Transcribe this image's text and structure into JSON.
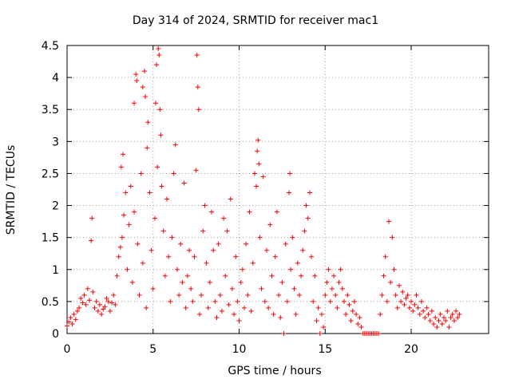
{
  "chart_data": {
    "type": "scatter",
    "title": "Day 314 of 2024, SRMTID for receiver mac1",
    "xlabel": "GPS time / hours",
    "ylabel": "SRMTID / TECUs",
    "xlim": [
      0,
      24.5
    ],
    "ylim": [
      0,
      4.5
    ],
    "xticks": [
      "0",
      "5",
      "10",
      "15",
      "20"
    ],
    "yticks": [
      "0",
      "0.5",
      "1",
      "1.5",
      "2",
      "2.5",
      "3",
      "3.5",
      "4",
      "4.5"
    ],
    "grid": true,
    "marker": "+",
    "color": "#ff0000",
    "series": [
      {
        "name": "SRMTID",
        "points": [
          [
            0.0,
            0.12
          ],
          [
            0.1,
            0.18
          ],
          [
            0.2,
            0.25
          ],
          [
            0.3,
            0.15
          ],
          [
            0.4,
            0.3
          ],
          [
            0.5,
            0.22
          ],
          [
            0.6,
            0.35
          ],
          [
            0.7,
            0.4
          ],
          [
            0.8,
            0.55
          ],
          [
            0.9,
            0.48
          ],
          [
            1.0,
            0.6
          ],
          [
            1.1,
            0.45
          ],
          [
            1.2,
            0.7
          ],
          [
            1.3,
            0.52
          ],
          [
            1.4,
            1.45
          ],
          [
            1.45,
            1.8
          ],
          [
            1.5,
            0.65
          ],
          [
            1.6,
            0.4
          ],
          [
            1.7,
            0.5
          ],
          [
            1.8,
            0.35
          ],
          [
            1.9,
            0.45
          ],
          [
            2.0,
            0.3
          ],
          [
            2.1,
            0.38
          ],
          [
            2.2,
            0.42
          ],
          [
            2.3,
            0.55
          ],
          [
            2.4,
            0.5
          ],
          [
            2.5,
            0.35
          ],
          [
            2.6,
            0.48
          ],
          [
            2.7,
            0.6
          ],
          [
            2.8,
            0.45
          ],
          [
            2.9,
            0.9
          ],
          [
            3.0,
            1.2
          ],
          [
            3.1,
            1.35
          ],
          [
            3.15,
            2.6
          ],
          [
            3.2,
            1.5
          ],
          [
            3.25,
            2.8
          ],
          [
            3.3,
            1.85
          ],
          [
            3.4,
            2.2
          ],
          [
            3.5,
            1.0
          ],
          [
            3.6,
            1.7
          ],
          [
            3.7,
            2.3
          ],
          [
            3.8,
            0.8
          ],
          [
            3.9,
            1.9
          ],
          [
            3.9,
            3.6
          ],
          [
            4.0,
            4.05
          ],
          [
            4.05,
            3.95
          ],
          [
            4.1,
            1.4
          ],
          [
            4.2,
            0.6
          ],
          [
            4.3,
            2.5
          ],
          [
            4.4,
            1.1
          ],
          [
            4.4,
            3.85
          ],
          [
            4.5,
            4.1
          ],
          [
            4.55,
            3.7
          ],
          [
            4.6,
            0.4
          ],
          [
            4.65,
            2.9
          ],
          [
            4.7,
            3.3
          ],
          [
            4.8,
            2.2
          ],
          [
            4.9,
            1.3
          ],
          [
            5.0,
            0.7
          ],
          [
            5.1,
            1.8
          ],
          [
            5.15,
            3.6
          ],
          [
            5.2,
            4.2
          ],
          [
            5.25,
            2.6
          ],
          [
            5.3,
            4.45
          ],
          [
            5.35,
            4.35
          ],
          [
            5.4,
            3.5
          ],
          [
            5.45,
            3.1
          ],
          [
            5.5,
            2.3
          ],
          [
            5.6,
            1.6
          ],
          [
            5.7,
            0.9
          ],
          [
            5.8,
            2.1
          ],
          [
            5.9,
            1.2
          ],
          [
            6.0,
            0.5
          ],
          [
            6.1,
            1.5
          ],
          [
            6.2,
            2.5
          ],
          [
            6.3,
            2.95
          ],
          [
            6.4,
            1.0
          ],
          [
            6.5,
            0.6
          ],
          [
            6.6,
            1.4
          ],
          [
            6.7,
            0.8
          ],
          [
            6.8,
            2.35
          ],
          [
            6.9,
            0.4
          ],
          [
            7.0,
            0.9
          ],
          [
            7.1,
            1.3
          ],
          [
            7.2,
            0.7
          ],
          [
            7.3,
            0.5
          ],
          [
            7.4,
            1.2
          ],
          [
            7.5,
            2.55
          ],
          [
            7.55,
            4.35
          ],
          [
            7.6,
            3.85
          ],
          [
            7.65,
            3.5
          ],
          [
            7.7,
            0.3
          ],
          [
            7.8,
            0.6
          ],
          [
            7.9,
            1.6
          ],
          [
            8.0,
            2.0
          ],
          [
            8.1,
            1.1
          ],
          [
            8.2,
            0.4
          ],
          [
            8.3,
            0.8
          ],
          [
            8.4,
            1.9
          ],
          [
            8.5,
            1.3
          ],
          [
            8.6,
            0.5
          ],
          [
            8.7,
            0.25
          ],
          [
            8.8,
            1.4
          ],
          [
            8.9,
            0.6
          ],
          [
            9.0,
            0.35
          ],
          [
            9.1,
            1.8
          ],
          [
            9.2,
            0.9
          ],
          [
            9.3,
            1.6
          ],
          [
            9.4,
            0.45
          ],
          [
            9.5,
            2.1
          ],
          [
            9.6,
            0.7
          ],
          [
            9.7,
            0.3
          ],
          [
            9.8,
            1.2
          ],
          [
            9.9,
            0.5
          ],
          [
            10.0,
            0.2
          ],
          [
            10.1,
            0.8
          ],
          [
            10.2,
            1.0
          ],
          [
            10.3,
            0.4
          ],
          [
            10.4,
            1.4
          ],
          [
            10.5,
            0.6
          ],
          [
            10.6,
            1.9
          ],
          [
            10.7,
            0.35
          ],
          [
            10.8,
            1.1
          ],
          [
            10.9,
            2.5
          ],
          [
            11.0,
            2.3
          ],
          [
            11.05,
            2.85
          ],
          [
            11.1,
            3.02
          ],
          [
            11.15,
            2.65
          ],
          [
            11.2,
            1.5
          ],
          [
            11.3,
            0.7
          ],
          [
            11.4,
            2.45
          ],
          [
            11.5,
            0.5
          ],
          [
            11.6,
            1.3
          ],
          [
            11.7,
            0.4
          ],
          [
            11.8,
            1.7
          ],
          [
            11.9,
            0.9
          ],
          [
            12.0,
            0.3
          ],
          [
            12.1,
            1.2
          ],
          [
            12.2,
            1.9
          ],
          [
            12.3,
            0.6
          ],
          [
            12.4,
            0.25
          ],
          [
            12.5,
            0.8
          ],
          [
            12.6,
            0.0
          ],
          [
            12.7,
            1.4
          ],
          [
            12.8,
            0.5
          ],
          [
            12.9,
            2.2
          ],
          [
            12.95,
            2.5
          ],
          [
            13.0,
            1.0
          ],
          [
            13.1,
            1.5
          ],
          [
            13.2,
            0.7
          ],
          [
            13.3,
            0.3
          ],
          [
            13.4,
            1.1
          ],
          [
            13.5,
            0.6
          ],
          [
            13.6,
            0.9
          ],
          [
            13.7,
            1.3
          ],
          [
            13.8,
            1.6
          ],
          [
            13.9,
            2.0
          ],
          [
            14.0,
            1.8
          ],
          [
            14.1,
            2.2
          ],
          [
            14.2,
            1.2
          ],
          [
            14.3,
            0.5
          ],
          [
            14.4,
            0.9
          ],
          [
            14.5,
            0.2
          ],
          [
            14.6,
            0.4
          ],
          [
            14.7,
            0.0
          ],
          [
            14.8,
            0.3
          ],
          [
            14.9,
            0.1
          ],
          [
            15.0,
            0.6
          ],
          [
            15.1,
            0.8
          ],
          [
            15.2,
            1.0
          ],
          [
            15.3,
            0.5
          ],
          [
            15.4,
            0.7
          ],
          [
            15.5,
            0.9
          ],
          [
            15.6,
            0.6
          ],
          [
            15.7,
            0.4
          ],
          [
            15.8,
            0.8
          ],
          [
            15.9,
            1.0
          ],
          [
            16.0,
            0.7
          ],
          [
            16.1,
            0.5
          ],
          [
            16.2,
            0.3
          ],
          [
            16.3,
            0.6
          ],
          [
            16.4,
            0.45
          ],
          [
            16.5,
            0.2
          ],
          [
            16.6,
            0.35
          ],
          [
            16.7,
            0.5
          ],
          [
            16.8,
            0.3
          ],
          [
            16.9,
            0.15
          ],
          [
            17.0,
            0.25
          ],
          [
            17.1,
            0.1
          ],
          [
            17.2,
            0.0
          ],
          [
            17.3,
            0.0
          ],
          [
            17.4,
            0.0
          ],
          [
            17.5,
            0.0
          ],
          [
            17.6,
            0.0
          ],
          [
            17.7,
            0.0
          ],
          [
            17.8,
            0.0
          ],
          [
            17.9,
            0.0
          ],
          [
            18.0,
            0.0
          ],
          [
            18.1,
            0.0
          ],
          [
            18.2,
            0.3
          ],
          [
            18.3,
            0.6
          ],
          [
            18.4,
            0.9
          ],
          [
            18.5,
            1.2
          ],
          [
            18.6,
            0.5
          ],
          [
            18.7,
            1.75
          ],
          [
            18.8,
            0.8
          ],
          [
            18.9,
            1.5
          ],
          [
            19.0,
            1.0
          ],
          [
            19.1,
            0.6
          ],
          [
            19.2,
            0.4
          ],
          [
            19.3,
            0.75
          ],
          [
            19.4,
            0.5
          ],
          [
            19.5,
            0.65
          ],
          [
            19.6,
            0.45
          ],
          [
            19.7,
            0.55
          ],
          [
            19.8,
            0.6
          ],
          [
            19.9,
            0.4
          ],
          [
            20.0,
            0.5
          ],
          [
            20.1,
            0.35
          ],
          [
            20.2,
            0.45
          ],
          [
            20.3,
            0.6
          ],
          [
            20.4,
            0.4
          ],
          [
            20.5,
            0.3
          ],
          [
            20.6,
            0.5
          ],
          [
            20.7,
            0.35
          ],
          [
            20.8,
            0.25
          ],
          [
            20.9,
            0.4
          ],
          [
            21.0,
            0.3
          ],
          [
            21.1,
            0.2
          ],
          [
            21.2,
            0.35
          ],
          [
            21.3,
            0.15
          ],
          [
            21.4,
            0.25
          ],
          [
            21.5,
            0.1
          ],
          [
            21.6,
            0.2
          ],
          [
            21.7,
            0.3
          ],
          [
            21.8,
            0.15
          ],
          [
            21.9,
            0.25
          ],
          [
            22.0,
            0.2
          ],
          [
            22.1,
            0.35
          ],
          [
            22.2,
            0.1
          ],
          [
            22.3,
            0.25
          ],
          [
            22.4,
            0.3
          ],
          [
            22.5,
            0.2
          ],
          [
            22.6,
            0.35
          ],
          [
            22.7,
            0.25
          ],
          [
            22.8,
            0.3
          ]
        ]
      }
    ]
  }
}
